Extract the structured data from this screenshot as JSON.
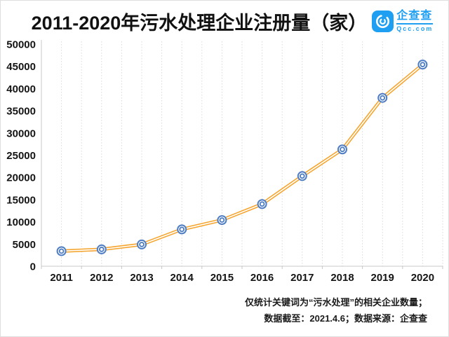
{
  "header": {
    "title": "2011-2020年污水处理企业注册量（家）",
    "logo": {
      "name": "企查查",
      "domain": "Qcc.com"
    }
  },
  "chart_data": {
    "type": "line",
    "title": "2011-2020年污水处理企业注册量（家）",
    "categories": [
      "2011",
      "2012",
      "2013",
      "2014",
      "2015",
      "2016",
      "2017",
      "2018",
      "2019",
      "2020"
    ],
    "series": [
      {
        "name": "污水处理企业注册量（家）",
        "values": [
          3400,
          3800,
          4900,
          8300,
          10400,
          14000,
          20300,
          26300,
          37900,
          45400
        ]
      }
    ],
    "xlabel": "",
    "ylabel": "",
    "ylim": [
      0,
      50000
    ],
    "y_tick_step": 5000,
    "y_ticks": [
      "0",
      "5000",
      "10000",
      "15000",
      "20000",
      "25000",
      "30000",
      "35000",
      "40000",
      "45000",
      "50000"
    ],
    "grid": "vertical-dotted-minor-and-major",
    "legend_position": "none",
    "marker_style": "double-ring-circle",
    "colors": {
      "line": "#F5A42D",
      "line_inner": "#FFFFFF",
      "marker_ring": "#4E7DC4",
      "marker_fill": "#FFFFFF",
      "gridline": "#D9D9D9",
      "axis": "#C9C9C9",
      "tick_text": "#141414",
      "logo_blue": "#1E9FF2"
    }
  },
  "footer": {
    "line1": "仅统计关键词为“污水处理”的相关企业数量；",
    "line2": "数据截至：2021.4.6；数据来源：企查查"
  }
}
